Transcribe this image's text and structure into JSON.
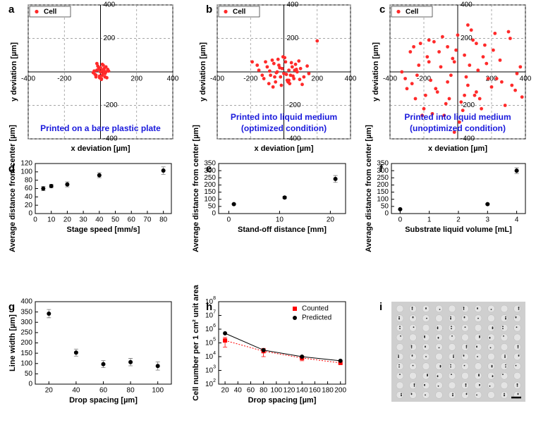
{
  "chart_data": [
    {
      "panel_label": "a",
      "type": "scatter",
      "centered_axes": true,
      "x_label": "x deviation [µm]",
      "y_label": "y deviation [µm]",
      "xlim": [
        -400,
        400
      ],
      "ylim": [
        -400,
        400
      ],
      "xticks": [
        -400,
        -200,
        200,
        400
      ],
      "yticks": [
        -400,
        -200,
        200,
        400
      ],
      "grid": true,
      "legend": "top-left",
      "annotation": [
        "Printed on a bare plastic plate"
      ],
      "series": [
        {
          "name": "Cell",
          "color": "#ff2a2a",
          "x": [
            -20,
            10,
            30,
            -35,
            5,
            -10,
            25,
            40,
            -25,
            15,
            0,
            -5,
            20,
            -40,
            35,
            -15,
            10,
            -30,
            45,
            5,
            -20,
            25,
            -10,
            15,
            0,
            30,
            -25,
            10,
            -5,
            20
          ],
          "values": [
            10,
            -20,
            30,
            5,
            -40,
            25,
            -10,
            15,
            -30,
            40,
            0,
            -25,
            20,
            -5,
            -35,
            35,
            10,
            -15,
            5,
            -45,
            50,
            -30,
            15,
            -10,
            25,
            0,
            -20,
            45,
            -35,
            5
          ]
        }
      ]
    },
    {
      "panel_label": "b",
      "type": "scatter",
      "centered_axes": true,
      "x_label": "x deviation [µm]",
      "y_label": "y deviation [µm]",
      "xlim": [
        -400,
        400
      ],
      "ylim": [
        -400,
        400
      ],
      "xticks": [
        -400,
        -200,
        200,
        400
      ],
      "yticks": [
        -400,
        -200,
        200,
        400
      ],
      "grid": true,
      "legend": "top-left",
      "annotation": [
        "Printed into liquid medium",
        "(optimized condition)"
      ],
      "series": [
        {
          "name": "Cell",
          "color": "#ff2a2a",
          "x": [
            -150,
            -120,
            -100,
            -80,
            -60,
            -50,
            -40,
            -30,
            -20,
            -10,
            0,
            10,
            20,
            30,
            40,
            50,
            60,
            80,
            100,
            120,
            150,
            -90,
            -70,
            -45,
            -15,
            5,
            25,
            45,
            70,
            95,
            -130,
            -110,
            -55,
            -25,
            15,
            35,
            65,
            90,
            -160,
            140,
            200,
            -190,
            110,
            -5,
            -65,
            75,
            -35,
            55,
            -85,
            30
          ],
          "values": [
            10,
            -40,
            30,
            -20,
            50,
            -60,
            0,
            40,
            -30,
            20,
            -10,
            60,
            -50,
            10,
            -20,
            30,
            -40,
            0,
            20,
            -30,
            -10,
            -70,
            70,
            -5,
            -80,
            85,
            -60,
            55,
            45,
            -45,
            -20,
            60,
            -30,
            25,
            -15,
            -70,
            10,
            65,
            40,
            35,
            185,
            60,
            -75,
            90,
            -90,
            15,
            75,
            -25,
            5,
            -50
          ]
        }
      ]
    },
    {
      "panel_label": "c",
      "type": "scatter",
      "centered_axes": true,
      "x_label": "x deviation [µm]",
      "y_label": "y deviation [µm]",
      "xlim": [
        -400,
        400
      ],
      "ylim": [
        -400,
        400
      ],
      "xticks": [
        -400,
        -200,
        200,
        400
      ],
      "yticks": [
        -400,
        -200,
        200,
        400
      ],
      "grid": true,
      "legend": "top-left",
      "annotation": [
        "Printed into liquid medium",
        "(unoptimized condition)"
      ],
      "series": [
        {
          "name": "Cell",
          "color": "#ff2a2a",
          "x": [
            -330,
            -300,
            -280,
            -250,
            -230,
            -200,
            -180,
            -160,
            -140,
            -120,
            -100,
            -80,
            -60,
            -40,
            -20,
            0,
            20,
            40,
            60,
            80,
            100,
            120,
            140,
            160,
            180,
            200,
            220,
            250,
            280,
            310,
            340,
            370,
            -310,
            -270,
            -220,
            -190,
            -150,
            -110,
            -70,
            -30,
            10,
            50,
            90,
            130,
            170,
            210,
            260,
            300,
            350,
            -260,
            -210,
            -170,
            -130,
            -90,
            -50,
            -10,
            30,
            70,
            110,
            150,
            -240,
            -170,
            -60,
            40,
            110,
            230,
            320,
            380,
            -20,
            60
          ],
          "values": [
            0,
            -100,
            120,
            -160,
            40,
            -220,
            90,
            -50,
            180,
            -120,
            30,
            -260,
            150,
            -20,
            60,
            220,
            -180,
            100,
            -80,
            250,
            -140,
            10,
            -220,
            160,
            -40,
            -90,
            230,
            70,
            -200,
            200,
            -110,
            30,
            -40,
            -70,
            170,
            -140,
            -250,
            120,
            -190,
            80,
            -300,
            -30,
            190,
            -160,
            50,
            130,
            -60,
            240,
            -10,
            150,
            -260,
            60,
            -100,
            210,
            -160,
            130,
            -230,
            40,
            -120,
            90,
            -20,
            190,
            -60,
            -140,
            170,
            -40,
            -80,
            -150,
            -360,
            280
          ]
        }
      ]
    },
    {
      "panel_label": "d",
      "type": "scatter",
      "x_label": "Stage speed [mm/s]",
      "y_label": "Average distance from center [µm]",
      "xlim": [
        0,
        85
      ],
      "ylim": [
        0,
        120
      ],
      "xticks": [
        0,
        10,
        20,
        30,
        40,
        50,
        60,
        70,
        80
      ],
      "yticks": [
        0,
        20,
        40,
        60,
        80,
        100,
        120
      ],
      "series": [
        {
          "color": "#000000",
          "x": [
            5,
            10,
            20,
            40,
            80
          ],
          "values": [
            60,
            66,
            70,
            92,
            103
          ],
          "errors": [
            5,
            4,
            6,
            6,
            9
          ]
        }
      ]
    },
    {
      "panel_label": "e",
      "type": "scatter",
      "x_label": "Stand-off distance [mm]",
      "y_label": "Average distance from center [µm]",
      "xlim": [
        -2,
        23
      ],
      "ylim": [
        0,
        350
      ],
      "xticks": [
        0,
        10,
        20
      ],
      "yticks": [
        0,
        50,
        100,
        150,
        200,
        250,
        300,
        350
      ],
      "series": [
        {
          "color": "#000000",
          "x": [
            1,
            11,
            21
          ],
          "values": [
            66,
            112,
            242
          ],
          "errors": [
            5,
            8,
            24
          ]
        }
      ]
    },
    {
      "panel_label": "f",
      "type": "scatter",
      "x_label": "Substrate liquid volume [mL]",
      "y_label": "Average distance from center [µm]",
      "xlim": [
        -0.3,
        4.3
      ],
      "ylim": [
        0,
        350
      ],
      "xticks": [
        0,
        1,
        2,
        3,
        4
      ],
      "yticks": [
        0,
        50,
        100,
        150,
        200,
        250,
        300,
        350
      ],
      "series": [
        {
          "color": "#000000",
          "x": [
            0,
            3,
            4
          ],
          "values": [
            30,
            66,
            300
          ],
          "errors": [
            3,
            5,
            20
          ]
        }
      ]
    },
    {
      "panel_label": "g",
      "type": "scatter",
      "x_label": "Drop spacing [µm]",
      "y_label": "Line width [µm]",
      "xlim": [
        10,
        110
      ],
      "ylim": [
        0,
        400
      ],
      "xticks": [
        20,
        40,
        60,
        80,
        100
      ],
      "yticks": [
        0,
        50,
        100,
        150,
        200,
        250,
        300,
        350,
        400
      ],
      "series": [
        {
          "color": "#000000",
          "x": [
            20,
            40,
            60,
            80,
            100
          ],
          "values": [
            342,
            153,
            97,
            107,
            88
          ],
          "errors": [
            20,
            17,
            17,
            18,
            20
          ]
        }
      ]
    },
    {
      "panel_label": "h",
      "type": "scatter",
      "log_y": true,
      "x_label": "Drop spacing [µm]",
      "y_label": "Cell number per 1 cm² unit area",
      "xlim": [
        10,
        208
      ],
      "ylim": [
        100,
        100000000
      ],
      "xticks": [
        20,
        40,
        60,
        80,
        100,
        120,
        140,
        160,
        180,
        200
      ],
      "yticks": [
        {
          "value": 100,
          "label": "10",
          "exponent": "2"
        },
        {
          "value": 1000,
          "label": "10",
          "exponent": "3"
        },
        {
          "value": 10000,
          "label": "10",
          "exponent": "4"
        },
        {
          "value": 100000,
          "label": "10",
          "exponent": "5"
        },
        {
          "value": 1000000,
          "label": "10",
          "exponent": "6"
        },
        {
          "value": 10000000,
          "label": "10",
          "exponent": "7"
        },
        {
          "value": 100000000,
          "label": "10",
          "exponent": "8"
        }
      ],
      "legend": "top-right",
      "series": [
        {
          "name": "Counted",
          "color": "#ff0000",
          "marker": "square",
          "line": "dotted",
          "x": [
            20,
            80,
            140,
            200
          ],
          "values": [
            150000,
            25000,
            8000,
            3500
          ],
          "errors": [
            100000,
            15000,
            3000,
            null
          ]
        },
        {
          "name": "Predicted",
          "color": "#000000",
          "marker": "circle",
          "line": "solid",
          "x": [
            20,
            80,
            140,
            200
          ],
          "values": [
            500000,
            30000,
            10000,
            5000
          ]
        }
      ]
    },
    {
      "panel_label": "i",
      "type": "image"
    }
  ]
}
